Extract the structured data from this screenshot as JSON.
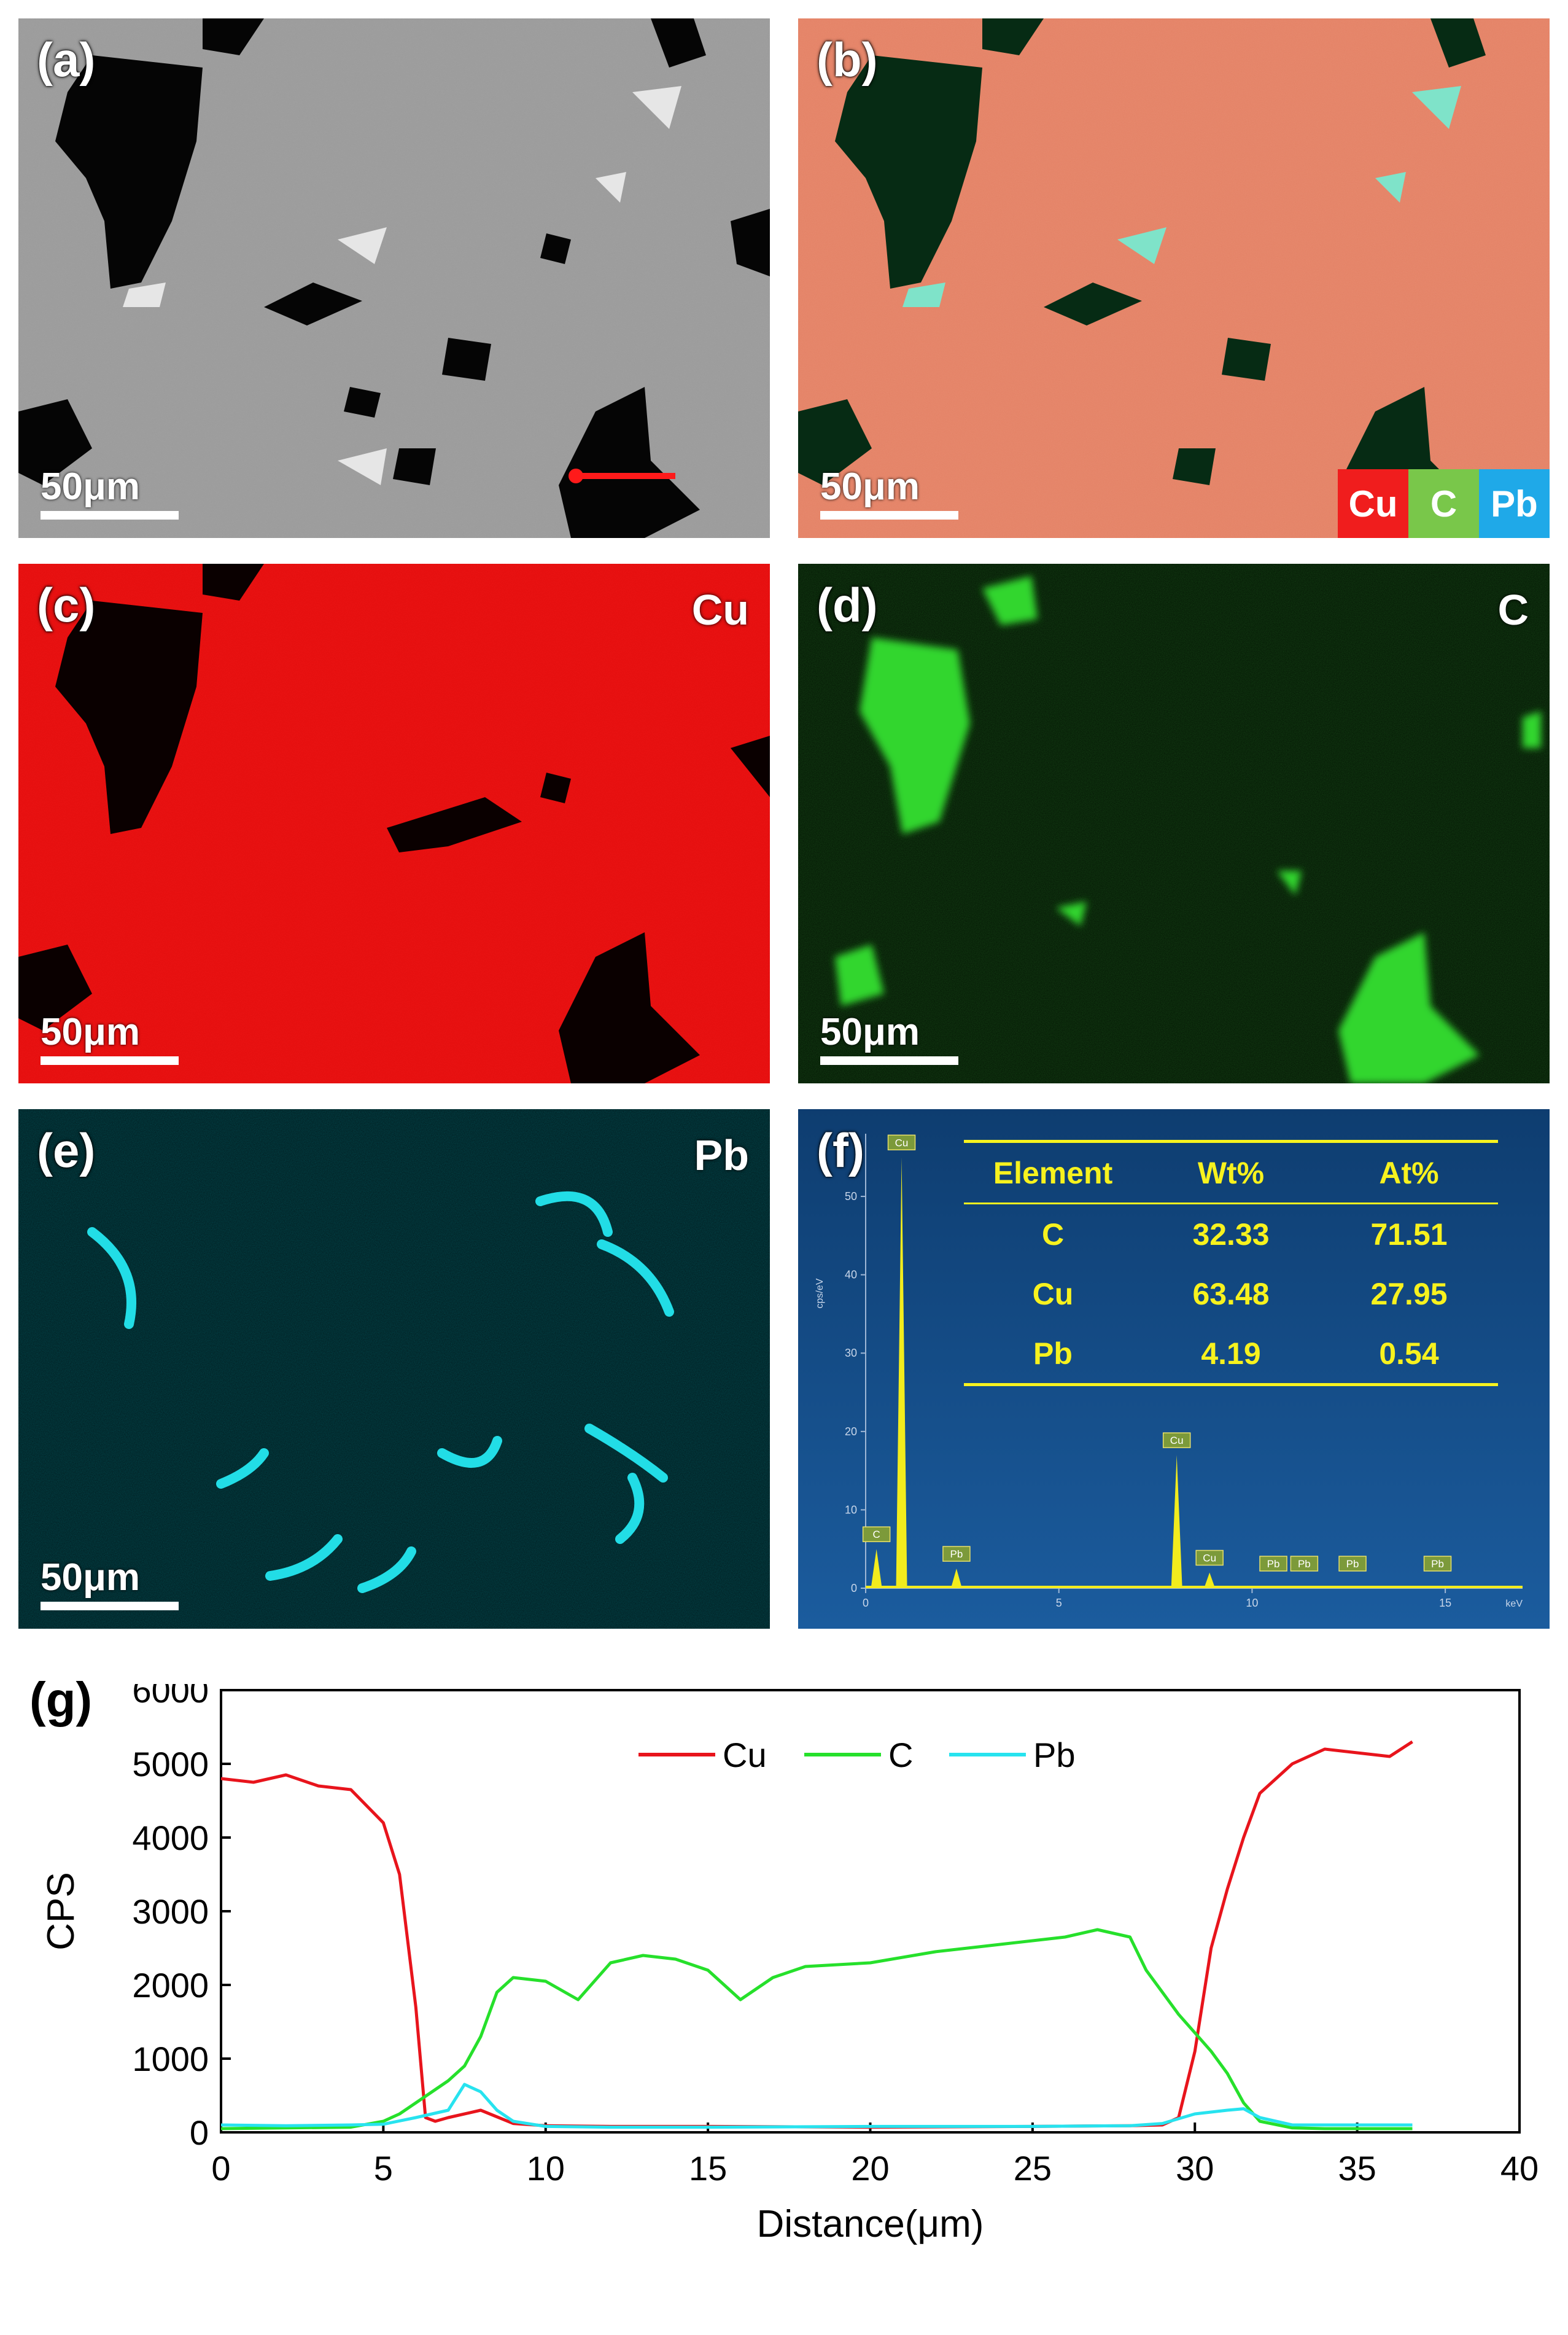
{
  "panels": {
    "a": {
      "label": "(a)",
      "scale": "50μm"
    },
    "b": {
      "label": "(b)",
      "scale": "50μm",
      "legend": [
        {
          "text": "Cu",
          "color": "#f01d1d"
        },
        {
          "text": "C",
          "color": "#79c74a"
        },
        {
          "text": "Pb",
          "color": "#1fa9e8"
        }
      ]
    },
    "c": {
      "label": "(c)",
      "element": "Cu",
      "scale": "50μm"
    },
    "d": {
      "label": "(d)",
      "element": "C",
      "scale": "50μm"
    },
    "e": {
      "label": "(e)",
      "element": "Pb",
      "scale": "50μm"
    },
    "f": {
      "label": "(f)",
      "table": {
        "headers": [
          "Element",
          "Wt%",
          "At%"
        ],
        "rows": [
          [
            "C",
            "32.33",
            "71.51"
          ],
          [
            "Cu",
            "63.48",
            "27.95"
          ],
          [
            "Pb",
            "4.19",
            "0.54"
          ]
        ]
      },
      "spectrum": {
        "y_axis_label": "cps/eV",
        "x_axis_label": "keV",
        "y_ticks": [
          "0",
          "10",
          "20",
          "30",
          "40",
          "50"
        ],
        "x_ticks": [
          "0",
          "5",
          "10",
          "15"
        ],
        "peaks": [
          {
            "label": "Cu",
            "kev": 0.93,
            "cps": 55
          },
          {
            "label": "C",
            "kev": 0.28,
            "cps": 5
          },
          {
            "label": "Pb",
            "kev": 2.35,
            "cps": 2.5
          },
          {
            "label": "Cu",
            "kev": 8.05,
            "cps": 17
          },
          {
            "label": "Cu",
            "kev": 8.9,
            "cps": 2
          },
          {
            "label": "Pb",
            "kev": 10.55,
            "cps": 0.3
          },
          {
            "label": "Pb",
            "kev": 11.35,
            "cps": 0.3
          },
          {
            "label": "Pb",
            "kev": 12.6,
            "cps": 0.3
          },
          {
            "label": "Pb",
            "kev": 14.8,
            "cps": 0.3
          }
        ]
      }
    }
  },
  "chart_label": "(g)",
  "chart_data": {
    "type": "line",
    "xlabel": "Distance(μm)",
    "ylabel": "CPS",
    "xlim": [
      0,
      40
    ],
    "ylim": [
      0,
      6000
    ],
    "xticks": [
      0,
      5,
      10,
      15,
      20,
      25,
      30,
      35,
      40
    ],
    "yticks": [
      0,
      1000,
      2000,
      3000,
      4000,
      5000,
      6000
    ],
    "legend_position": "top-center",
    "series": [
      {
        "name": "Cu",
        "color": "#e8141c",
        "x": [
          0,
          1,
          2,
          3,
          4,
          5,
          5.5,
          6,
          6.3,
          6.6,
          7,
          8,
          9,
          10,
          12,
          15,
          20,
          25,
          28,
          29,
          29.5,
          30,
          30.5,
          31,
          31.5,
          32,
          33,
          34,
          35,
          36,
          36.7
        ],
        "y": [
          4800,
          4750,
          4850,
          4700,
          4650,
          4200,
          3500,
          1700,
          200,
          150,
          200,
          300,
          120,
          90,
          80,
          80,
          70,
          80,
          90,
          100,
          200,
          1100,
          2500,
          3300,
          4000,
          4600,
          5000,
          5200,
          5150,
          5100,
          5300
        ]
      },
      {
        "name": "C",
        "color": "#26e02b",
        "x": [
          0,
          2,
          4,
          5,
          5.5,
          6,
          6.5,
          7,
          7.5,
          8,
          8.5,
          9,
          10,
          11,
          12,
          13,
          14,
          15,
          16,
          17,
          18,
          20,
          22,
          24,
          26,
          27,
          28,
          28.5,
          29,
          29.5,
          30,
          30.5,
          31,
          31.5,
          32,
          33,
          34,
          36.7
        ],
        "y": [
          50,
          60,
          70,
          150,
          250,
          400,
          550,
          700,
          900,
          1300,
          1900,
          2100,
          2050,
          1800,
          2300,
          2400,
          2350,
          2200,
          1800,
          2100,
          2250,
          2300,
          2450,
          2550,
          2650,
          2750,
          2650,
          2200,
          1900,
          1600,
          1350,
          1100,
          800,
          400,
          150,
          60,
          50,
          50
        ]
      },
      {
        "name": "Pb",
        "color": "#27e3ef",
        "x": [
          0,
          2,
          4,
          5,
          6,
          7,
          7.5,
          8,
          8.5,
          9,
          10,
          12,
          15,
          20,
          25,
          28,
          29,
          30,
          31,
          31.5,
          32,
          33,
          34,
          36.7
        ],
        "y": [
          100,
          90,
          100,
          110,
          200,
          300,
          650,
          550,
          300,
          150,
          80,
          70,
          70,
          80,
          80,
          90,
          120,
          250,
          300,
          320,
          200,
          100,
          100,
          100
        ]
      }
    ]
  }
}
